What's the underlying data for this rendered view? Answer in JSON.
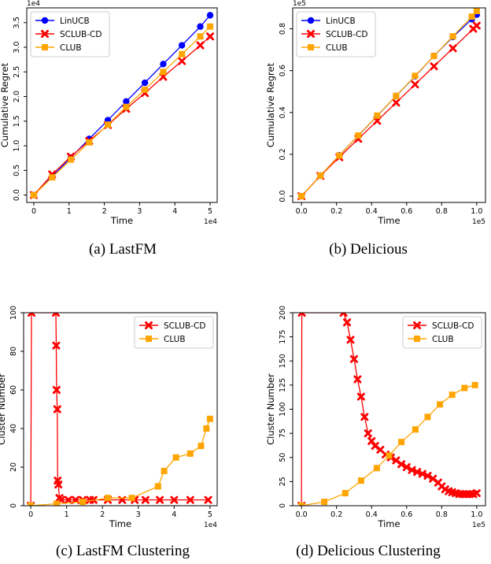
{
  "colors": {
    "linucb": "#0000ff",
    "sclub": "#ff0000",
    "club": "#ffa500",
    "frame": "#000000"
  },
  "captions": [
    "(a)  LastFM",
    "(b)  Delicious",
    "(c)  LastFM Clustering",
    "(d)  Delicious Clustering"
  ],
  "chart_data": [
    {
      "type": "line",
      "title": "",
      "xlabel": "Time",
      "ylabel": "Cumulative Regret",
      "x_exponent": "1e4",
      "y_exponent": "1e4",
      "xlim": [
        -0.2,
        5.2
      ],
      "ylim": [
        -0.15,
        3.8
      ],
      "xticks": [
        0,
        1,
        2,
        3,
        4,
        5
      ],
      "xtick_labels": [
        "0",
        "1",
        "2",
        "3",
        "4",
        "5"
      ],
      "yticks": [
        0,
        0.5,
        1.0,
        1.5,
        2.0,
        2.5,
        3.0,
        3.5
      ],
      "ytick_labels": [
        "0.0",
        "0.5",
        "1.0",
        "1.5",
        "2.0",
        "2.5",
        "3.0",
        "3.5"
      ],
      "legend": "upper-left",
      "series": [
        {
          "name": "LinUCB",
          "color": "#0000ff",
          "marker": "circle",
          "x": [
            0,
            0.52,
            1.05,
            1.57,
            2.1,
            2.62,
            3.15,
            3.67,
            4.2,
            4.72,
            5.0
          ],
          "y": [
            0,
            0.38,
            0.76,
            1.14,
            1.52,
            1.9,
            2.28,
            2.66,
            3.04,
            3.42,
            3.65
          ]
        },
        {
          "name": "SCLUB-CD",
          "color": "#ff0000",
          "marker": "x",
          "x": [
            0,
            0.52,
            1.05,
            1.57,
            2.1,
            2.62,
            3.15,
            3.67,
            4.2,
            4.72,
            5.0
          ],
          "y": [
            0,
            0.42,
            0.78,
            1.1,
            1.42,
            1.75,
            2.07,
            2.4,
            2.72,
            3.04,
            3.22
          ]
        },
        {
          "name": "CLUB",
          "color": "#ffa500",
          "marker": "square",
          "x": [
            0,
            0.52,
            1.05,
            1.57,
            2.1,
            2.62,
            3.15,
            3.67,
            4.2,
            4.72,
            5.0
          ],
          "y": [
            0,
            0.36,
            0.72,
            1.07,
            1.43,
            1.79,
            2.14,
            2.5,
            2.86,
            3.22,
            3.42
          ]
        }
      ]
    },
    {
      "type": "line",
      "title": "",
      "xlabel": "Time",
      "ylabel": "Cumulative Regret",
      "x_exponent": "1e5",
      "y_exponent": "1e5",
      "xlim": [
        -0.05,
        1.05
      ],
      "ylim": [
        -0.03,
        0.9
      ],
      "xticks": [
        0,
        0.2,
        0.4,
        0.6,
        0.8,
        1.0
      ],
      "xtick_labels": [
        "0.0",
        "0.2",
        "0.4",
        "0.6",
        "0.8",
        "1.0"
      ],
      "yticks": [
        0,
        0.2,
        0.4,
        0.6,
        0.8
      ],
      "ytick_labels": [
        "0.0",
        "0.2",
        "0.4",
        "0.6",
        "0.8"
      ],
      "legend": "upper-left",
      "series": [
        {
          "name": "LinUCB",
          "color": "#0000ff",
          "marker": "circle",
          "x": [
            0,
            0.108,
            0.216,
            0.324,
            0.432,
            0.54,
            0.648,
            0.756,
            0.864,
            0.972,
            1.0
          ],
          "y": [
            0,
            0.098,
            0.195,
            0.289,
            0.384,
            0.479,
            0.573,
            0.67,
            0.761,
            0.846,
            0.868
          ]
        },
        {
          "name": "SCLUB-CD",
          "color": "#ff0000",
          "marker": "x",
          "x": [
            0,
            0.108,
            0.216,
            0.324,
            0.432,
            0.54,
            0.648,
            0.756,
            0.864,
            0.98,
            1.0
          ],
          "y": [
            0,
            0.097,
            0.186,
            0.274,
            0.36,
            0.447,
            0.534,
            0.621,
            0.707,
            0.8,
            0.815
          ]
        },
        {
          "name": "CLUB",
          "color": "#ffa500",
          "marker": "square",
          "x": [
            0,
            0.108,
            0.216,
            0.324,
            0.432,
            0.54,
            0.648,
            0.756,
            0.864,
            0.972,
            1.0
          ],
          "y": [
            0,
            0.098,
            0.194,
            0.29,
            0.385,
            0.479,
            0.575,
            0.67,
            0.764,
            0.858,
            0.885
          ]
        }
      ]
    },
    {
      "type": "line",
      "title": "",
      "xlabel": "Time",
      "ylabel": "Cluster Number",
      "x_exponent": "1e4",
      "y_exponent": "",
      "xlim": [
        -0.2,
        5.2
      ],
      "ylim": [
        0,
        100
      ],
      "xticks": [
        0,
        1,
        2,
        3,
        4,
        5
      ],
      "xtick_labels": [
        "0",
        "1",
        "2",
        "3",
        "4",
        "5"
      ],
      "yticks": [
        0,
        20,
        40,
        60,
        80,
        100
      ],
      "ytick_labels": [
        "0",
        "20",
        "40",
        "60",
        "80",
        "100"
      ],
      "legend": "upper-right",
      "series": [
        {
          "name": "SCLUB-CD",
          "color": "#ff0000",
          "marker": "x",
          "x": [
            0,
            0.02,
            0.7,
            0.71,
            0.72,
            0.74,
            0.75,
            0.77,
            0.8,
            0.85,
            1.05,
            1.25,
            1.45,
            1.65,
            1.75,
            2.15,
            2.55,
            2.9,
            3.2,
            3.6,
            4.0,
            4.45,
            4.95
          ],
          "y": [
            0,
            100,
            100,
            83,
            60,
            50,
            13,
            11,
            4,
            3,
            3,
            3,
            3,
            3,
            3,
            3,
            3,
            3,
            3,
            3,
            3,
            3,
            3
          ]
        },
        {
          "name": "CLUB",
          "color": "#ffa500",
          "marker": "square",
          "x": [
            0,
            0.72,
            1.45,
            2.15,
            2.82,
            3.55,
            3.72,
            4.05,
            4.45,
            4.75,
            4.9,
            5.0
          ],
          "y": [
            0,
            1,
            2,
            4,
            4,
            10,
            18,
            25,
            27,
            31,
            40,
            45
          ]
        }
      ]
    },
    {
      "type": "line",
      "title": "",
      "xlabel": "Time",
      "ylabel": "Cluster Number",
      "x_exponent": "1e5",
      "y_exponent": "",
      "xlim": [
        -0.05,
        1.05
      ],
      "ylim": [
        0,
        200
      ],
      "xticks": [
        0,
        0.2,
        0.4,
        0.6,
        0.8,
        1.0
      ],
      "xtick_labels": [
        "0.0",
        "0.2",
        "0.4",
        "0.6",
        "0.8",
        "1.0"
      ],
      "yticks": [
        0,
        25,
        50,
        75,
        100,
        125,
        150,
        175,
        200
      ],
      "ytick_labels": [
        "0",
        "25",
        "50",
        "75",
        "100",
        "125",
        "150",
        "175",
        "200"
      ],
      "legend": "upper-right",
      "series": [
        {
          "name": "SCLUB-CD",
          "color": "#ff0000",
          "marker": "x",
          "x": [
            0,
            0.002,
            0.24,
            0.26,
            0.28,
            0.3,
            0.32,
            0.34,
            0.36,
            0.38,
            0.4,
            0.42,
            0.45,
            0.48,
            0.51,
            0.54,
            0.57,
            0.6,
            0.63,
            0.66,
            0.69,
            0.72,
            0.75,
            0.78,
            0.8,
            0.82,
            0.84,
            0.86,
            0.88,
            0.9,
            0.92,
            0.94,
            0.96,
            0.98,
            1.0
          ],
          "y": [
            0,
            200,
            200,
            190,
            172,
            152,
            131,
            113,
            92,
            75,
            67,
            62,
            58,
            53,
            50,
            47,
            43,
            40,
            37,
            35,
            33,
            31,
            28,
            24,
            20,
            17,
            15,
            14,
            13,
            12,
            12,
            12,
            12,
            12,
            13
          ]
        },
        {
          "name": "CLUB",
          "color": "#ffa500",
          "marker": "square",
          "x": [
            0,
            0.13,
            0.25,
            0.34,
            0.43,
            0.5,
            0.57,
            0.65,
            0.72,
            0.79,
            0.86,
            0.93,
            0.99
          ],
          "y": [
            0,
            4,
            13,
            26,
            39,
            52,
            66,
            79,
            92,
            105,
            115,
            122,
            125
          ]
        }
      ]
    }
  ]
}
